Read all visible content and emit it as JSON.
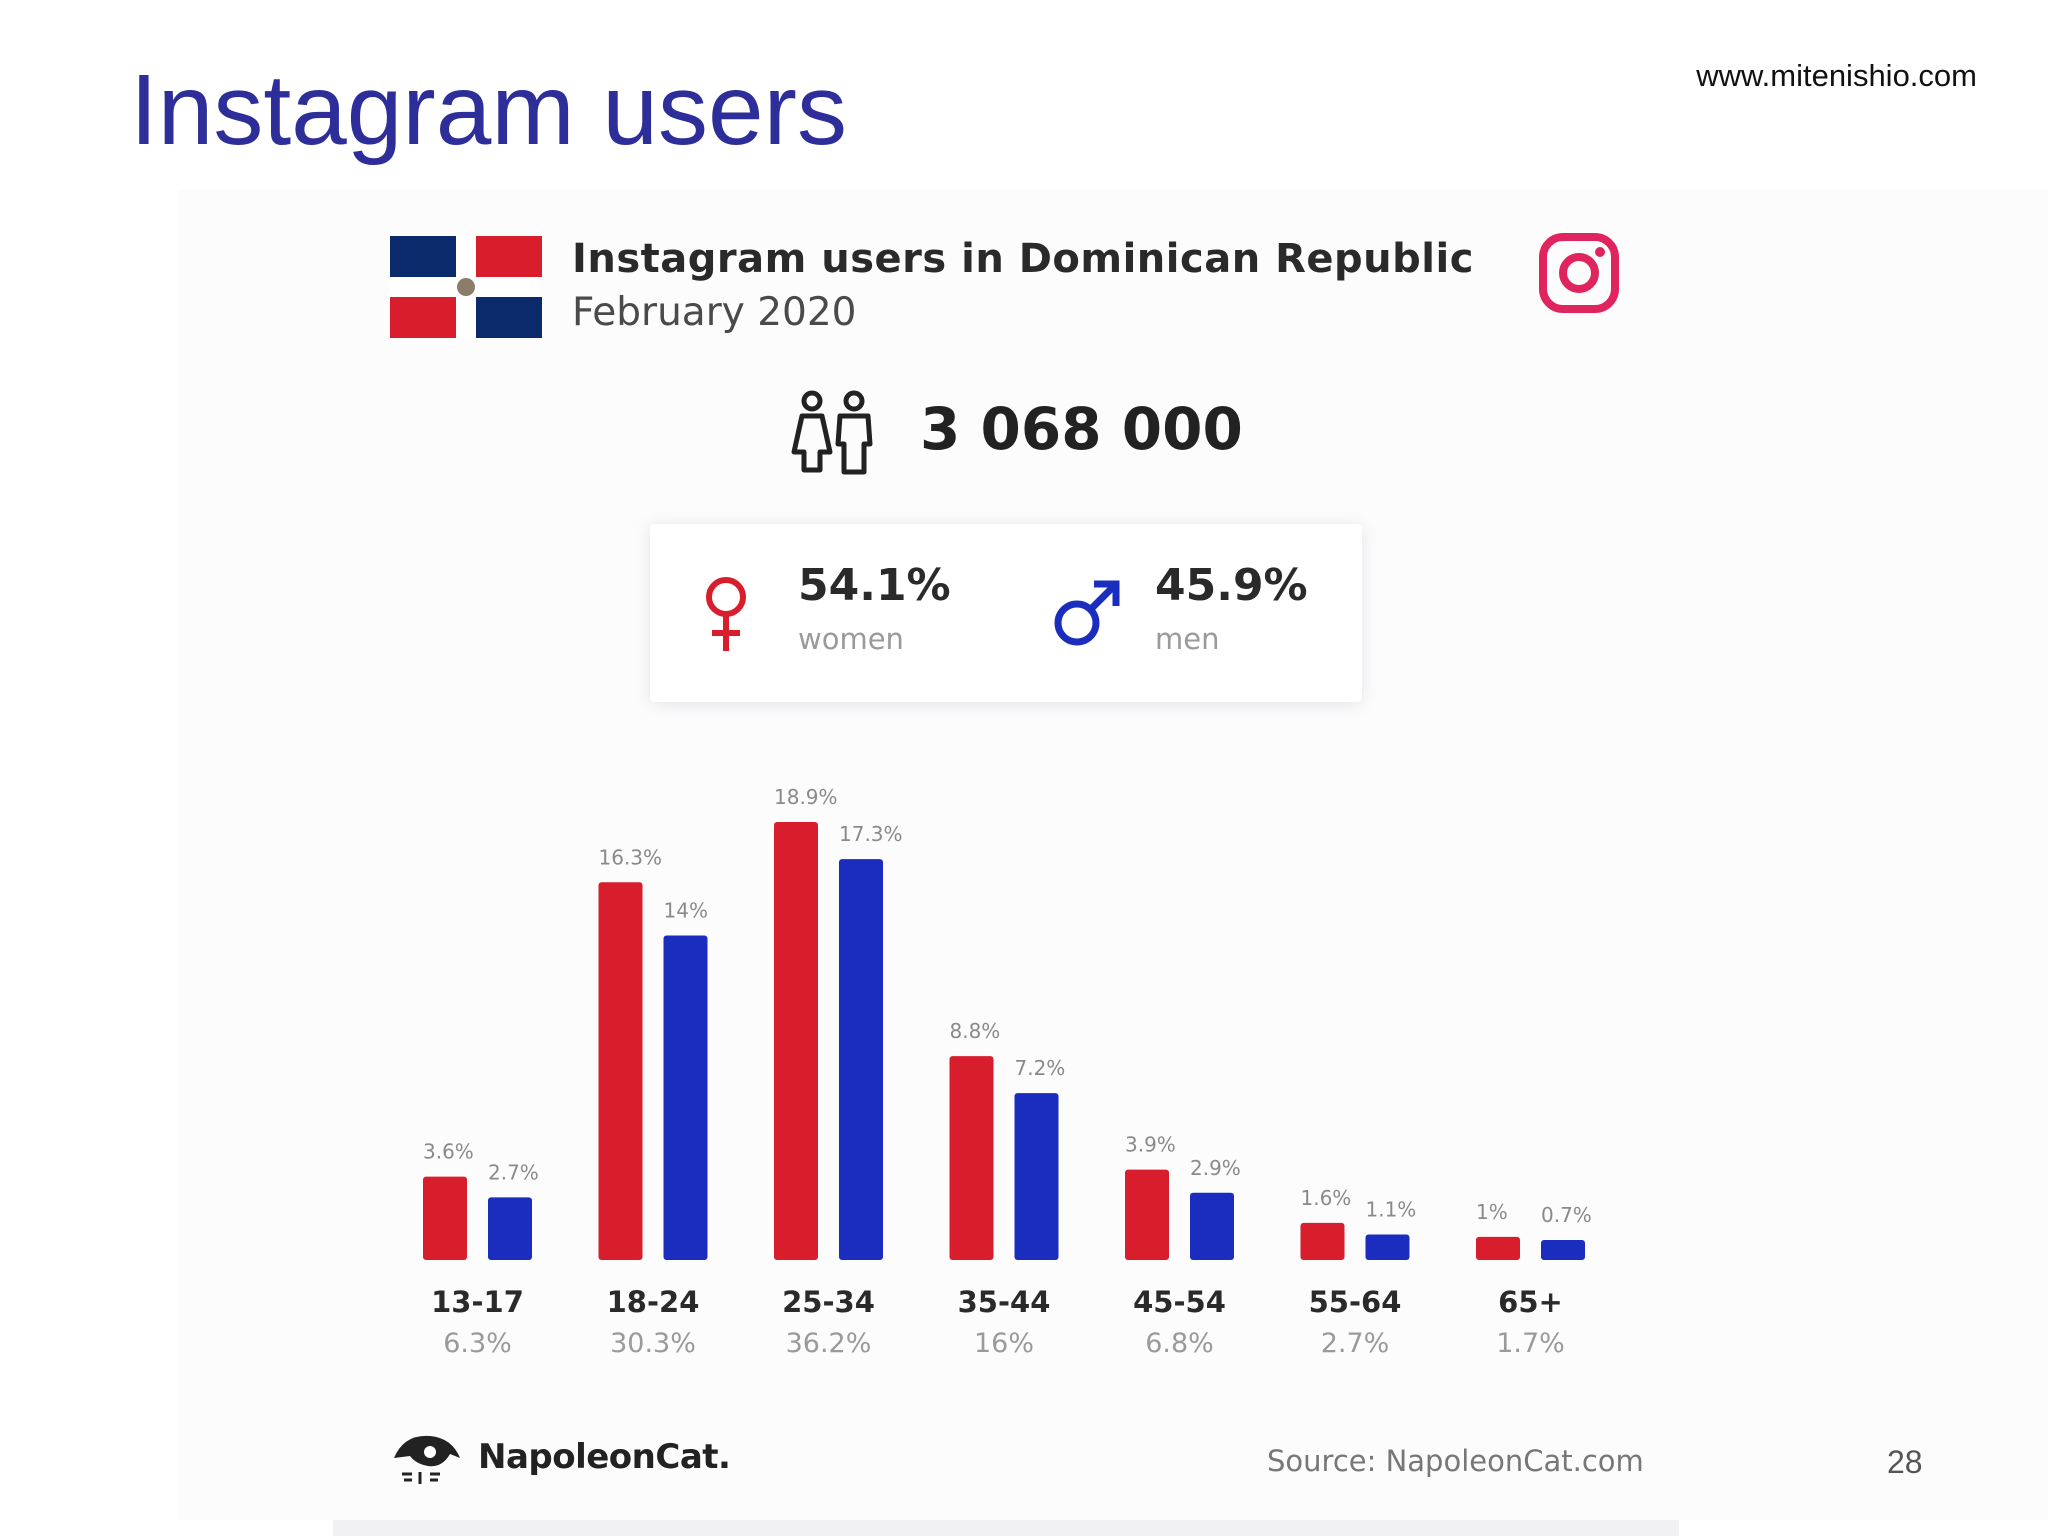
{
  "slide": {
    "title": "Instagram users",
    "url": "www.mitenishio.com",
    "page_number": "28"
  },
  "card": {
    "title": "Instagram users in Dominican Republic",
    "date": "February 2020",
    "total_users": "3 068 000",
    "women_pct": "54.1%",
    "women_label": "women",
    "men_pct": "45.9%",
    "men_label": "men",
    "brand": "NapoleonCat.",
    "source": "Source: NapoleonCat.com",
    "icons": [
      "dominican-flag-icon",
      "instagram-icon",
      "users-icon",
      "female-symbol-icon",
      "male-symbol-icon",
      "napoleoncat-logo-icon"
    ]
  },
  "colors": {
    "women": "#d81e2c",
    "men": "#1a2dbf",
    "title": "#2e2e9a",
    "instagram": "#e0245e"
  },
  "chart_data": {
    "type": "bar",
    "categories": [
      "13-17",
      "18-24",
      "25-34",
      "35-44",
      "45-54",
      "55-64",
      "65+"
    ],
    "category_totals": [
      "6.3%",
      "30.3%",
      "36.2%",
      "16%",
      "6.8%",
      "2.7%",
      "1.7%"
    ],
    "series": [
      {
        "name": "women",
        "values": [
          3.6,
          16.3,
          18.9,
          8.8,
          3.9,
          1.6,
          1.0
        ],
        "labels": [
          "3.6%",
          "16.3%",
          "18.9%",
          "8.8%",
          "3.9%",
          "1.6%",
          "1%"
        ],
        "color": "#d81e2c"
      },
      {
        "name": "men",
        "values": [
          2.7,
          14.0,
          17.3,
          7.2,
          2.9,
          1.1,
          0.7
        ],
        "labels": [
          "2.7%",
          "14%",
          "17.3%",
          "7.2%",
          "2.9%",
          "1.1%",
          "0.7%"
        ],
        "color": "#1a2dbf"
      }
    ],
    "ylim": [
      0,
      18.9
    ],
    "grid": false,
    "legend": "none"
  }
}
